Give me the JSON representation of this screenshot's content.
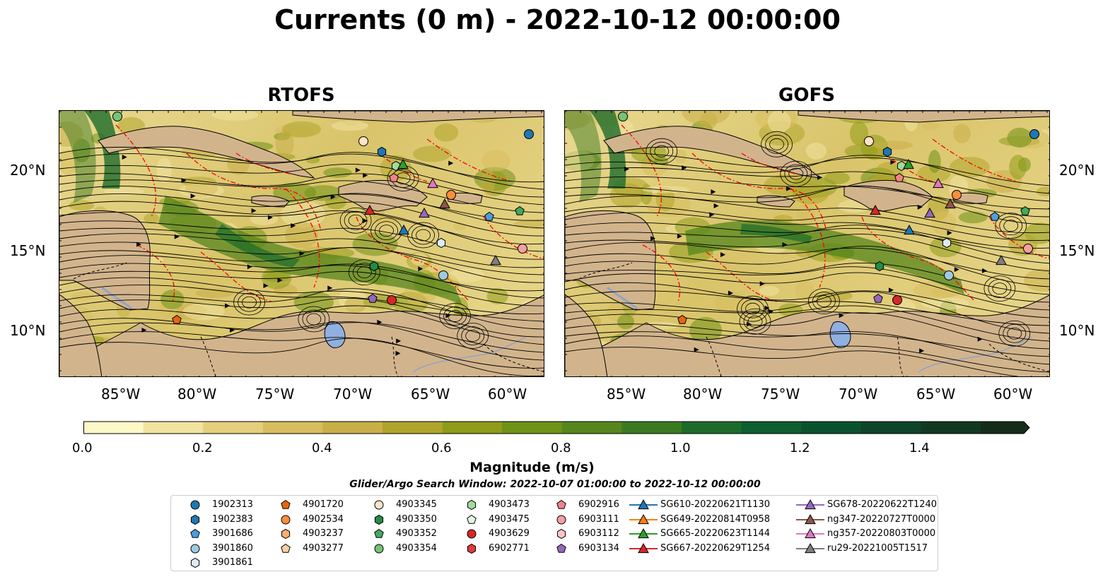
{
  "title": "Currents (0 m) - 2022-10-12 00:00:00",
  "panels": [
    {
      "name": "RTOFS"
    },
    {
      "name": "GOFS"
    }
  ],
  "lat_labels": [
    "20°N",
    "15°N",
    "10°N"
  ],
  "lon_labels": [
    "85°W",
    "80°W",
    "75°W",
    "70°W",
    "65°W",
    "60°W"
  ],
  "colorbar": {
    "title": "Magnitude (m/s)",
    "ticks": [
      "0.0",
      "0.2",
      "0.4",
      "0.6",
      "0.8",
      "1.0",
      "1.2",
      "1.4"
    ],
    "colors": [
      "#fdf8c8",
      "#f1e3a0",
      "#e4cf7c",
      "#d7bd5e",
      "#c9af48",
      "#b0a52c",
      "#8f9c1a",
      "#6f9217",
      "#56861d",
      "#3c7a22",
      "#1d6b2a",
      "#0d5e30",
      "#0a522e",
      "#0d4528",
      "#12391f",
      "#152c18"
    ]
  },
  "search_window": "Glider/Argo Search Window: 2022-10-07 01:00:00 to 2022-10-12 00:00:00",
  "legend": [
    {
      "label": "1902313",
      "marker": "circle",
      "color": "#1f77b4"
    },
    {
      "label": "1902383",
      "marker": "hexagon",
      "color": "#1f77b4"
    },
    {
      "label": "3901686",
      "marker": "pentagon",
      "color": "#4d9cde"
    },
    {
      "label": "3901860",
      "marker": "circle",
      "color": "#9ecae1"
    },
    {
      "label": "3901861",
      "marker": "hexagon",
      "color": "#deebf7"
    },
    {
      "label": "4901720",
      "marker": "pentagon",
      "color": "#e6650c"
    },
    {
      "label": "4902534",
      "marker": "circle",
      "color": "#fd8d3c"
    },
    {
      "label": "4903237",
      "marker": "hexagon",
      "color": "#fdae6b"
    },
    {
      "label": "4903277",
      "marker": "pentagon",
      "color": "#fdd0a2"
    },
    {
      "label": "4903345",
      "marker": "circle",
      "color": "#fde4c8"
    },
    {
      "label": "4903350",
      "marker": "hexagon",
      "color": "#238b45"
    },
    {
      "label": "4903352",
      "marker": "pentagon",
      "color": "#41ab5d"
    },
    {
      "label": "4903354",
      "marker": "circle",
      "color": "#74c476"
    },
    {
      "label": "4903473",
      "marker": "hexagon",
      "color": "#a1d99b"
    },
    {
      "label": "4903475",
      "marker": "pentagon",
      "color": "#e5f5e0"
    },
    {
      "label": "4903629",
      "marker": "circle",
      "color": "#d62728"
    },
    {
      "label": "6902771",
      "marker": "hexagon",
      "color": "#e03a3a"
    },
    {
      "label": "6902916",
      "marker": "pentagon",
      "color": "#f0828a"
    },
    {
      "label": "6903111",
      "marker": "circle",
      "color": "#f4a0a0"
    },
    {
      "label": "6903112",
      "marker": "hexagon",
      "color": "#fbc4c4"
    },
    {
      "label": "6903134",
      "marker": "pentagon",
      "color": "#9467bd"
    },
    {
      "label": "SG610-20220621T1130",
      "marker": "triangle",
      "color": "#1f77b4"
    },
    {
      "label": "SG649-20220814T0958",
      "marker": "triangle",
      "color": "#ff7f0e"
    },
    {
      "label": "SG665-20220623T1144",
      "marker": "triangle",
      "color": "#2ca02c"
    },
    {
      "label": "SG667-20220629T1254",
      "marker": "triangle",
      "color": "#d62728"
    },
    {
      "label": "SG678-20220622T1240",
      "marker": "triangle",
      "color": "#9467bd"
    },
    {
      "label": "ng347-20220727T0000",
      "marker": "triangle",
      "color": "#8c564b"
    },
    {
      "label": "ng357-20220803T0000",
      "marker": "triangle",
      "color": "#e377c2"
    },
    {
      "label": "ru29-20221005T1517",
      "marker": "triangle",
      "color": "#7f7f7f"
    }
  ],
  "colors": {
    "land": "#d2b48c",
    "eez": "#ff0000",
    "lake": "#8fb0e0",
    "streamline": "#000000"
  }
}
